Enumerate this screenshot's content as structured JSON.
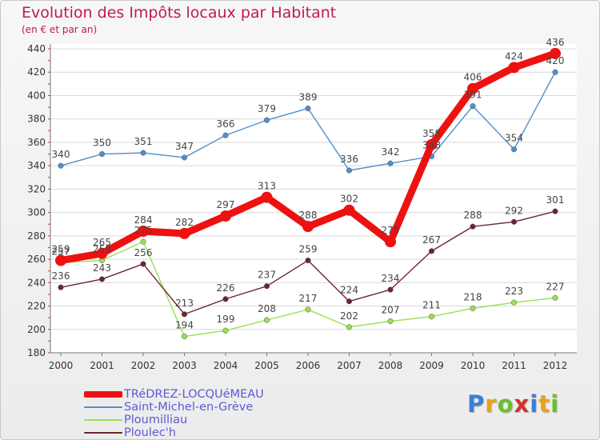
{
  "header": {
    "title": "Evolution des Impôts locaux par Habitant",
    "subtitle": "(en € et par an)"
  },
  "logo": {
    "text": "Proxiti",
    "letters": [
      {
        "ch": "P",
        "color": "#3a7fd4"
      },
      {
        "ch": "r",
        "color": "#e8a21c"
      },
      {
        "ch": "o",
        "color": "#6cbf2c"
      },
      {
        "ch": "x",
        "color": "#d62f2f"
      },
      {
        "ch": "i",
        "color": "#3a7fd4"
      },
      {
        "ch": "t",
        "color": "#e8a21c"
      },
      {
        "ch": "i",
        "color": "#6cbf2c"
      }
    ]
  },
  "chart_data": {
    "type": "line",
    "title": "Evolution des Impôts locaux par Habitant",
    "subtitle": "(en € et par an)",
    "x": [
      "2000",
      "2001",
      "2002",
      "2003",
      "2004",
      "2005",
      "2006",
      "2007",
      "2008",
      "2009",
      "2010",
      "2011",
      "2012"
    ],
    "ylim": [
      180,
      440
    ],
    "yticks": [
      180,
      200,
      220,
      240,
      260,
      280,
      300,
      320,
      340,
      360,
      380,
      400,
      420,
      440
    ],
    "grid": "horizontal",
    "legend_position": "bottom-left",
    "series": [
      {
        "name": "TRéDREZ-LOCQUéMEAU",
        "color": "#ee1111",
        "highlight": true,
        "values": [
          259,
          265,
          284,
          282,
          297,
          313,
          288,
          302,
          275,
          358,
          406,
          424,
          436
        ],
        "labels": [
          "259",
          "265",
          "284",
          "282",
          "297",
          "313",
          "288",
          "302",
          "275",
          "358",
          "406",
          "424",
          "436"
        ]
      },
      {
        "name": "Saint-Michel-en-Grève",
        "color": "#4f8fcc",
        "highlight": false,
        "values": [
          340,
          350,
          351,
          347,
          366,
          379,
          389,
          336,
          342,
          348,
          391,
          354,
          420
        ],
        "labels": [
          "340",
          "350",
          "351",
          "347",
          "366",
          "379",
          "389",
          "336",
          "342",
          "348",
          "391",
          "354",
          "420"
        ]
      },
      {
        "name": "Ploumilliau",
        "color": "#98e050",
        "highlight": false,
        "values": [
          257,
          259,
          275,
          194,
          199,
          208,
          217,
          202,
          207,
          211,
          218,
          223,
          227
        ],
        "labels": [
          "257",
          "259",
          "275",
          "194",
          "199",
          "208",
          "217",
          "202",
          "207",
          "211",
          "218",
          "223",
          "227"
        ]
      },
      {
        "name": "Ploulec'h",
        "color": "#6a2630",
        "highlight": false,
        "values": [
          236,
          243,
          256,
          213,
          226,
          237,
          259,
          224,
          234,
          267,
          288,
          292,
          301
        ],
        "labels": [
          "236",
          "243",
          "256",
          "213",
          "226",
          "237",
          "259",
          "224",
          "234",
          "267",
          "288",
          "292",
          "301"
        ]
      }
    ]
  }
}
